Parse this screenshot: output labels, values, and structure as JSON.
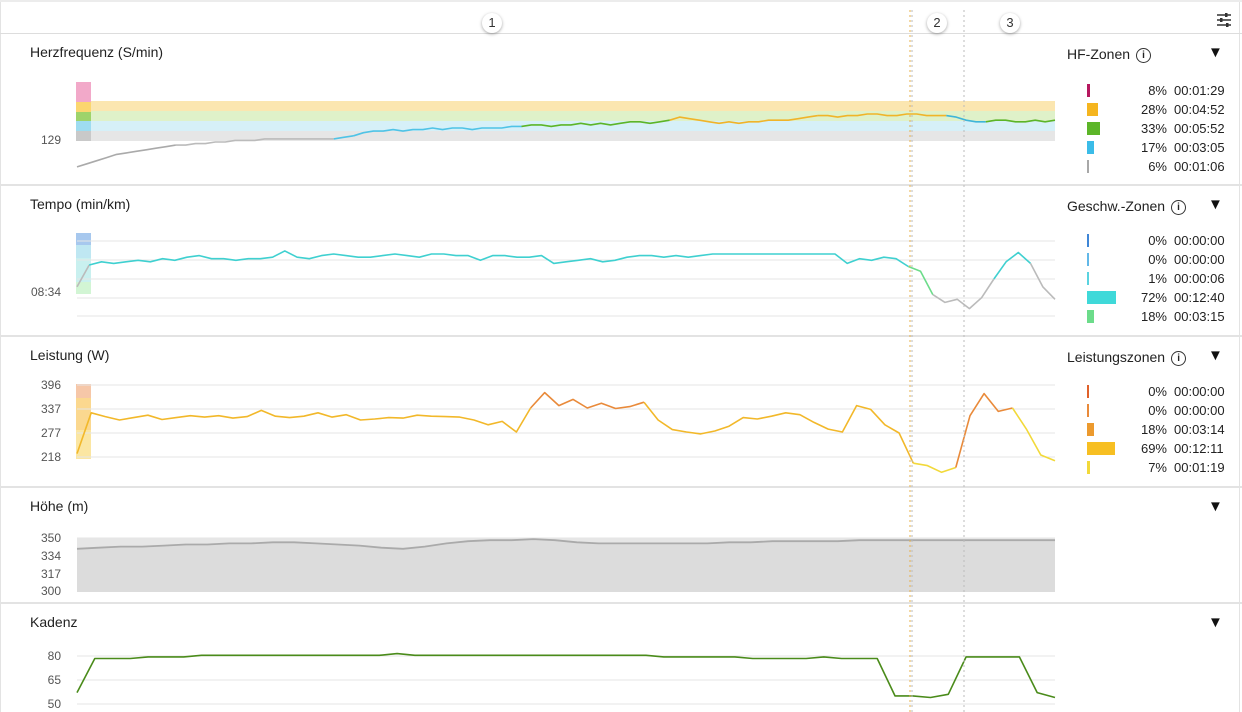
{
  "laps": [
    "1",
    "2",
    "3"
  ],
  "chart_data": [
    {
      "type": "line",
      "title": "Herzfrequenz (S/min)",
      "yticks": [
        "129"
      ],
      "ylim": [
        120,
        185
      ],
      "zone_band_colors": [
        "#f2a9c9",
        "#fbd66f",
        "#9ed36b",
        "#9edcf0",
        "#c9c9c9"
      ],
      "series": [
        {
          "values": [
            122,
            124,
            126,
            128,
            130,
            131,
            132,
            133,
            134,
            135,
            136,
            136,
            137,
            137,
            138,
            138,
            139,
            139,
            139,
            140,
            140,
            140,
            140,
            140,
            140,
            140,
            140,
            141,
            142,
            144,
            145,
            145,
            146,
            145,
            146,
            146,
            147,
            146,
            147,
            147,
            146,
            147,
            147,
            147,
            148,
            148,
            149,
            149,
            148,
            149,
            149,
            150,
            149,
            150,
            149,
            150,
            151,
            151,
            150,
            151,
            152,
            154,
            153,
            152,
            151,
            150,
            151,
            150,
            151,
            151,
            152,
            152,
            152,
            153,
            154,
            155,
            155,
            154,
            155,
            155,
            156,
            156,
            155,
            155,
            156,
            156,
            155,
            155,
            155,
            154,
            152,
            151,
            151,
            152,
            152,
            151,
            151,
            152,
            151,
            152
          ]
        }
      ]
    },
    {
      "type": "line",
      "title": "Tempo (min/km)",
      "yticks": [
        "08:34"
      ],
      "series": [
        {
          "values": [
            4.0,
            5.4,
            5.6,
            5.5,
            5.6,
            5.7,
            5.6,
            5.8,
            5.7,
            5.9,
            6.0,
            5.8,
            5.8,
            5.7,
            5.8,
            5.8,
            5.9,
            6.3,
            5.9,
            5.8,
            6.0,
            6.1,
            6.0,
            5.9,
            5.9,
            6.0,
            6.1,
            6.0,
            5.9,
            6.1,
            6.1,
            6.0,
            6.0,
            5.7,
            6.0,
            6.0,
            5.9,
            5.9,
            6.0,
            5.5,
            5.6,
            5.7,
            5.8,
            5.6,
            5.7,
            5.9,
            6.0,
            6.0,
            5.9,
            6.0,
            5.9,
            6.0,
            6.1,
            6.1,
            6.1,
            6.1,
            6.1,
            6.1,
            6.1,
            6.1,
            6.1,
            6.1,
            6.1,
            5.5,
            5.8,
            5.7,
            5.9,
            5.8,
            5.3,
            5.0,
            3.5,
            3.0,
            3.2,
            2.6,
            3.3,
            4.5,
            5.6,
            6.2,
            5.5,
            4.0,
            3.2
          ]
        }
      ]
    },
    {
      "type": "line",
      "title": "Leistung (W)",
      "yticks": [
        "396",
        "337",
        "277",
        "218"
      ],
      "ylim": [
        218,
        396
      ],
      "series": [
        {
          "values": [
            255,
            340,
            332,
            325,
            330,
            335,
            326,
            330,
            334,
            331,
            334,
            329,
            332,
            345,
            333,
            330,
            333,
            340,
            331,
            336,
            325,
            327,
            330,
            329,
            335,
            333,
            332,
            331,
            325,
            315,
            322,
            300,
            350,
            382,
            355,
            368,
            350,
            360,
            349,
            353,
            362,
            325,
            305,
            300,
            296,
            302,
            312,
            330,
            327,
            333,
            340,
            336,
            320,
            306,
            300,
            355,
            347,
            315,
            298,
            235,
            230,
            216,
            226,
            334,
            380,
            343,
            350,
            305,
            252,
            240
          ]
        }
      ]
    },
    {
      "type": "area",
      "title": "Höhe (m)",
      "yticks": [
        "350",
        "334",
        "317",
        "300"
      ],
      "ylim": [
        300,
        350
      ],
      "series": [
        {
          "values": [
            340,
            341,
            342,
            342,
            343,
            344,
            344,
            345,
            345,
            346,
            346,
            345,
            344,
            343,
            341,
            340,
            342,
            345,
            347,
            348,
            348,
            349,
            348,
            346,
            345,
            345,
            345,
            345,
            345,
            345,
            346,
            346,
            347,
            347,
            347,
            347,
            348,
            348,
            348,
            348,
            348,
            348,
            348,
            348,
            348,
            348
          ]
        }
      ]
    },
    {
      "type": "line",
      "title": "Kadenz",
      "yticks": [
        "80",
        "65",
        "50"
      ],
      "ylim": [
        50,
        85
      ],
      "series": [
        {
          "values": [
            57,
            78,
            78,
            78,
            79,
            79,
            79,
            80,
            80,
            80,
            80,
            80,
            80,
            80,
            80,
            80,
            80,
            80,
            81,
            80,
            80,
            80,
            80,
            80,
            80,
            80,
            80,
            80,
            80,
            80,
            80,
            80,
            80,
            79,
            79,
            79,
            79,
            79,
            78,
            78,
            78,
            78,
            79,
            78,
            78,
            78,
            55,
            55,
            54,
            56,
            79,
            79,
            79,
            79,
            57,
            54
          ]
        }
      ]
    }
  ],
  "zones": [
    {
      "title": "HF-Zonen",
      "rows": [
        {
          "pct": "8%",
          "time": "00:01:29",
          "color": "#b6185f",
          "fraction": 0.08
        },
        {
          "pct": "28%",
          "time": "00:04:52",
          "color": "#f5b51f",
          "fraction": 0.28
        },
        {
          "pct": "33%",
          "time": "00:05:52",
          "color": "#5cb528",
          "fraction": 0.33
        },
        {
          "pct": "17%",
          "time": "00:03:05",
          "color": "#3bbce8",
          "fraction": 0.17
        },
        {
          "pct": "6%",
          "time": "00:01:06",
          "color": "#a8a8a8",
          "fraction": 0.06
        }
      ]
    },
    {
      "title": "Geschw.-Zonen",
      "rows": [
        {
          "pct": "0%",
          "time": "00:00:00",
          "color": "#3f86d6",
          "fraction": 0.0
        },
        {
          "pct": "0%",
          "time": "00:00:00",
          "color": "#62b8e8",
          "fraction": 0.0
        },
        {
          "pct": "1%",
          "time": "00:00:06",
          "color": "#5ad3e0",
          "fraction": 0.01
        },
        {
          "pct": "72%",
          "time": "00:12:40",
          "color": "#3fd9d9",
          "fraction": 0.72
        },
        {
          "pct": "18%",
          "time": "00:03:15",
          "color": "#6cdc8a",
          "fraction": 0.18
        }
      ]
    },
    {
      "title": "Leistungszonen",
      "rows": [
        {
          "pct": "0%",
          "time": "00:00:00",
          "color": "#e0612a",
          "fraction": 0.0
        },
        {
          "pct": "0%",
          "time": "00:00:00",
          "color": "#e98a3a",
          "fraction": 0.0
        },
        {
          "pct": "18%",
          "time": "00:03:14",
          "color": "#ec9a2e",
          "fraction": 0.18
        },
        {
          "pct": "69%",
          "time": "00:12:11",
          "color": "#f7bf22",
          "fraction": 0.69
        },
        {
          "pct": "7%",
          "time": "00:01:19",
          "color": "#f2d93a",
          "fraction": 0.07
        }
      ]
    }
  ]
}
